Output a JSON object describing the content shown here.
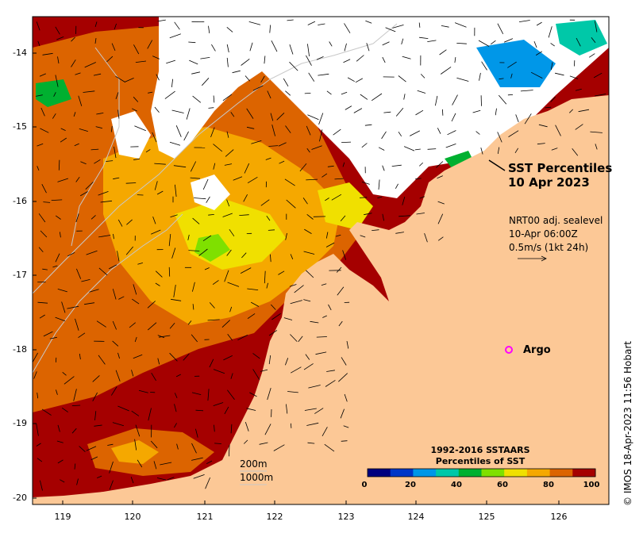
{
  "title": {
    "line1": "SST Percentiles",
    "line2": "10 Apr 2023"
  },
  "current_info": {
    "line1": "NRT00 adj. sealevel",
    "line2": "10-Apr 06:00Z",
    "line3": "0.5m/s (1kt 24h)"
  },
  "argo": {
    "label": "Argo",
    "marker_color": "#ff00ff",
    "lon": 125.25,
    "lat": -18.0
  },
  "contours": {
    "label1": "200m",
    "label2": "1000m"
  },
  "legend": {
    "title_line1": "1992-2016 SSTAARS",
    "title_line2": "Percentiles of SST",
    "ticks": [
      "0",
      "20",
      "40",
      "60",
      "80",
      "100"
    ],
    "colors": [
      "#00007f",
      "#0037c8",
      "#0097e8",
      "#00c8a8",
      "#00b030",
      "#7fe000",
      "#f0e000",
      "#f5a800",
      "#dc6400",
      "#a50000"
    ]
  },
  "axes": {
    "y_ticks": [
      "-14",
      "-15",
      "-16",
      "-17",
      "-18",
      "-19",
      "-20"
    ],
    "x_ticks": [
      "119",
      "120",
      "121",
      "122",
      "123",
      "124",
      "125",
      "126"
    ]
  },
  "credit": "© IMOS 18-Apr-2023 11:56 Hobart",
  "colors": {
    "land": "#fcc896",
    "cloud": "#ffffff"
  }
}
